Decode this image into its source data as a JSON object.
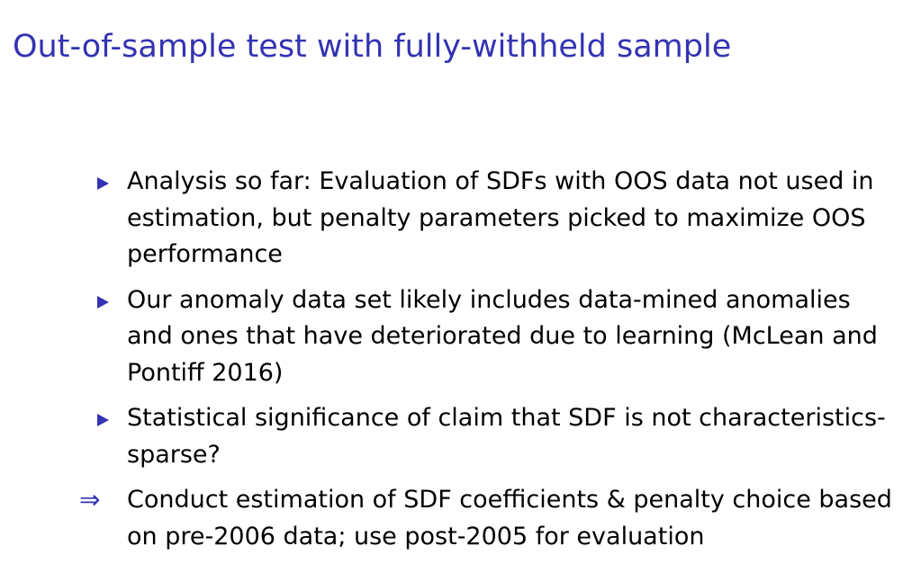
{
  "slide": {
    "title": "Out-of-sample test with fully-withheld sample"
  },
  "bullets": [
    "Analysis so far: Evaluation of SDFs with OOS data not used in estimation, but penalty parameters picked to maximize OOS performance",
    "Our anomaly data set likely includes data-mined anomalies and ones that have deteriorated due to learning (McLean and Pontiff 2016)",
    "Statistical significance of claim that SDF is not characteristics-sparse?"
  ],
  "conclusion": {
    "marker": "⇒",
    "text": "Conduct estimation of SDF coefficients & penalty choice based on pre-2006 data; use post-2005 for evaluation"
  },
  "colors": {
    "title": "#3333b3",
    "bullet_marker": "#3333b3",
    "body_text": "#000000",
    "background": "#ffffff"
  }
}
